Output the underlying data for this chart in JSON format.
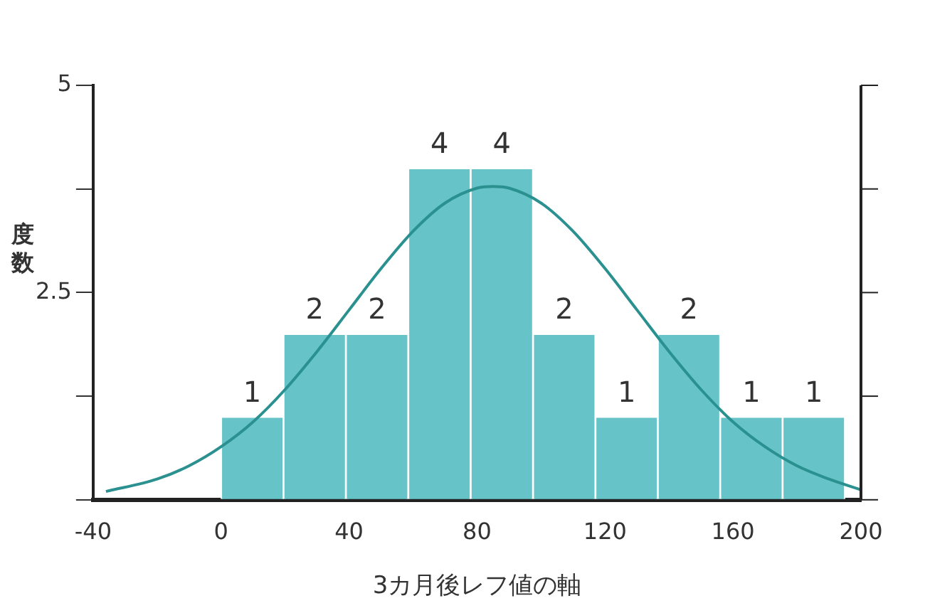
{
  "chart_data": {
    "type": "histogram",
    "xlabel": "3カ月後レフ値の軸",
    "ylabel": "度数",
    "series": [
      {
        "color": "#66c4c8",
        "bins": [
          0,
          19.5,
          39,
          58.5,
          78,
          97.5,
          117,
          136.5,
          156,
          175.5,
          195
        ],
        "values": [
          1,
          2,
          2,
          4,
          4,
          2,
          1,
          2,
          1,
          1
        ],
        "value_labels": [
          "1",
          "2",
          "2",
          "4",
          "4",
          "2",
          "1",
          "2",
          "1",
          "1"
        ]
      },
      {
        "type": "line",
        "color": "#2a9090",
        "x": [
          -36,
          -20,
          -10,
          0,
          10,
          20,
          30,
          40,
          50,
          60,
          70,
          80,
          85,
          90,
          100,
          110,
          120,
          130,
          140,
          150,
          160,
          170,
          180,
          190,
          200
        ],
        "values": [
          0.1,
          0.25,
          0.41,
          0.64,
          0.94,
          1.33,
          1.79,
          2.29,
          2.79,
          3.24,
          3.58,
          3.76,
          3.78,
          3.76,
          3.58,
          3.24,
          2.79,
          2.29,
          1.79,
          1.33,
          0.94,
          0.64,
          0.41,
          0.25,
          0.12
        ]
      }
    ],
    "xlim": [
      -40,
      200
    ],
    "xticks": [
      -40,
      0,
      40,
      80,
      120,
      160,
      200
    ],
    "ylim": [
      0,
      5
    ],
    "yticks": [
      {
        "value": 0,
        "label": null
      },
      {
        "value": 1.25,
        "label": null
      },
      2.5,
      {
        "value": 3.75,
        "label": null
      },
      5
    ],
    "grid": false,
    "legend": false
  }
}
